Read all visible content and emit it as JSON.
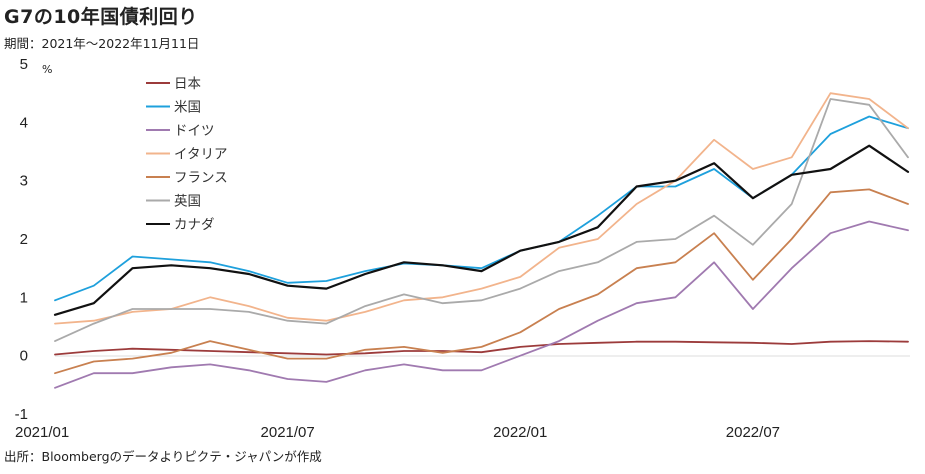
{
  "title": "G7の10年国債利回り",
  "subtitle": "期間：2021年～2022年11月11日",
  "source": "出所：Bloombergのデータよりピクテ・ジャパンが作成",
  "chart_data": {
    "type": "line",
    "unit": "%",
    "ylim": [
      -1,
      5
    ],
    "yticks": [
      "5",
      "4",
      "3",
      "2",
      "1",
      "0",
      "-1"
    ],
    "xticks": [
      "2021/01",
      "2021/07",
      "2022/01",
      "2022/07"
    ],
    "legend_position": "top-left",
    "grid": false,
    "x": [
      "2021/01",
      "2021/02",
      "2021/03",
      "2021/04",
      "2021/05",
      "2021/06",
      "2021/07",
      "2021/08",
      "2021/09",
      "2021/10",
      "2021/11",
      "2021/12",
      "2022/01",
      "2022/02",
      "2022/03",
      "2022/04",
      "2022/05",
      "2022/06",
      "2022/07",
      "2022/08",
      "2022/09",
      "2022/10",
      "2022/11"
    ],
    "series": [
      {
        "name": "日本",
        "color": "#9c3b3b",
        "values": [
          0.02,
          0.08,
          0.12,
          0.1,
          0.08,
          0.06,
          0.04,
          0.02,
          0.04,
          0.08,
          0.08,
          0.06,
          0.15,
          0.2,
          0.22,
          0.24,
          0.24,
          0.23,
          0.22,
          0.2,
          0.24,
          0.25,
          0.24
        ]
      },
      {
        "name": "米国",
        "color": "#1ea0dc",
        "values": [
          0.95,
          1.2,
          1.7,
          1.65,
          1.6,
          1.45,
          1.25,
          1.28,
          1.45,
          1.58,
          1.55,
          1.5,
          1.8,
          1.95,
          2.4,
          2.9,
          2.9,
          3.2,
          2.7,
          3.1,
          3.8,
          4.1,
          3.9
        ]
      },
      {
        "name": "ドイツ",
        "color": "#a07ab0",
        "values": [
          -0.55,
          -0.3,
          -0.3,
          -0.2,
          -0.15,
          -0.25,
          -0.4,
          -0.45,
          -0.25,
          -0.15,
          -0.25,
          -0.25,
          0.0,
          0.25,
          0.6,
          0.9,
          1.0,
          1.6,
          0.8,
          1.5,
          2.1,
          2.3,
          2.15
        ]
      },
      {
        "name": "イタリア",
        "color": "#f2b48c",
        "values": [
          0.55,
          0.6,
          0.75,
          0.8,
          1.0,
          0.85,
          0.65,
          0.6,
          0.75,
          0.95,
          1.0,
          1.15,
          1.35,
          1.85,
          2.0,
          2.6,
          3.0,
          3.7,
          3.2,
          3.4,
          4.5,
          4.4,
          3.9
        ]
      },
      {
        "name": "フランス",
        "color": "#c88050",
        "values": [
          -0.3,
          -0.1,
          -0.05,
          0.05,
          0.25,
          0.1,
          -0.05,
          -0.05,
          0.1,
          0.15,
          0.05,
          0.15,
          0.4,
          0.8,
          1.05,
          1.5,
          1.6,
          2.1,
          1.3,
          2.0,
          2.8,
          2.85,
          2.6
        ]
      },
      {
        "name": "英国",
        "color": "#aaaaaa",
        "values": [
          0.25,
          0.55,
          0.8,
          0.8,
          0.8,
          0.75,
          0.6,
          0.55,
          0.85,
          1.05,
          0.9,
          0.95,
          1.15,
          1.45,
          1.6,
          1.95,
          2.0,
          2.4,
          1.9,
          2.6,
          4.4,
          4.3,
          3.4
        ]
      },
      {
        "name": "カナダ",
        "color": "#111111",
        "values": [
          0.7,
          0.9,
          1.5,
          1.55,
          1.5,
          1.4,
          1.2,
          1.15,
          1.4,
          1.6,
          1.55,
          1.45,
          1.8,
          1.95,
          2.2,
          2.9,
          3.0,
          3.3,
          2.7,
          3.1,
          3.2,
          3.6,
          3.15
        ]
      }
    ]
  }
}
